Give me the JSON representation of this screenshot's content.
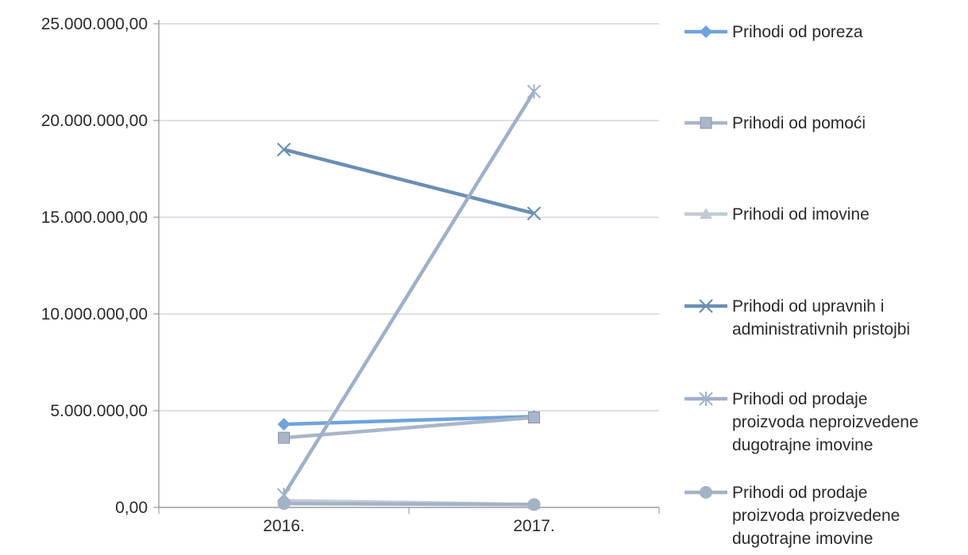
{
  "chart_data": {
    "type": "line",
    "categories": [
      "2016.",
      "2017."
    ],
    "y_ticks": [
      "0,00",
      "5.000.000,00",
      "10.000.000,00",
      "15.000.000,00",
      "20.000.000,00",
      "25.000.000,00"
    ],
    "ylim": [
      0,
      25000000
    ],
    "grid": true,
    "legend_position": "right",
    "series": [
      {
        "name": "Prihodi od poreza",
        "name_lines": [
          "Prihodi od poreza"
        ],
        "values": [
          4300000,
          4700000
        ],
        "color": "#6fa3dc",
        "marker": "diamond"
      },
      {
        "name": "Prihodi od pomoći",
        "name_lines": [
          "Prihodi od pomoći"
        ],
        "values": [
          3600000,
          4650000
        ],
        "color": "#a9b5c8",
        "marker": "square"
      },
      {
        "name": "Prihodi od imovine",
        "name_lines": [
          "Prihodi od imovine"
        ],
        "values": [
          350000,
          150000
        ],
        "color": "#c4cad3",
        "marker": "triangle"
      },
      {
        "name": "Prihodi od upravnih i administrativnih pristojbi",
        "name_lines": [
          "Prihodi od upravnih i",
          "administrativnih pristojbi"
        ],
        "values": [
          18500000,
          15200000
        ],
        "color": "#6b8fb5",
        "marker": "x"
      },
      {
        "name": "Prihodi od prodaje proizvoda neproizvedene dugotrajne imovine",
        "name_lines": [
          "Prihodi od prodaje",
          "proizvoda neproizvedene",
          "dugotrajne imovine"
        ],
        "values": [
          650000,
          21500000
        ],
        "color": "#9fb0c8",
        "marker": "star"
      },
      {
        "name": "Prihodi od prodaje proizvoda proizvedene dugotrajne imovine",
        "name_lines": [
          "Prihodi od prodaje",
          "proizvoda proizvedene",
          "dugotrajne imovine"
        ],
        "values": [
          200000,
          150000
        ],
        "color": "#a3b3c6",
        "marker": "circle"
      }
    ]
  }
}
